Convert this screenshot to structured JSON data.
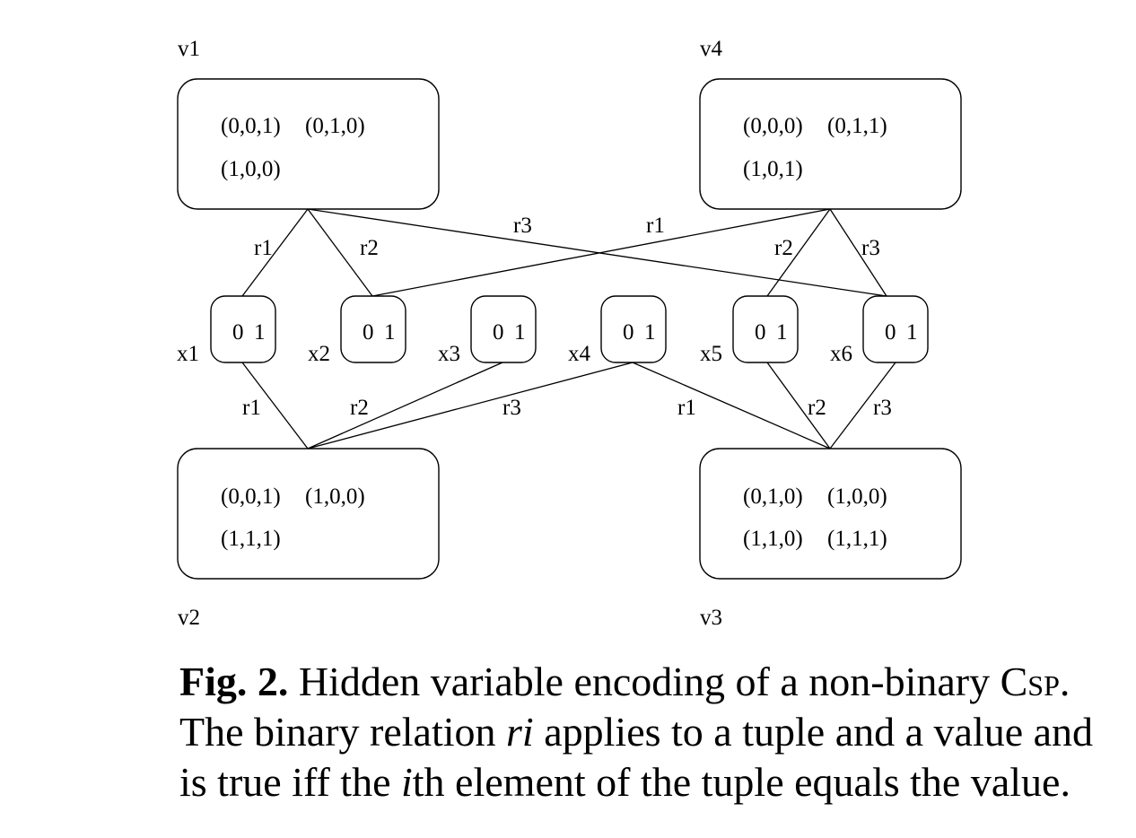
{
  "diagram": {
    "constraint_nodes": [
      {
        "id": "v1",
        "label": "v1",
        "tuples": [
          "(0,0,1)",
          "(0,1,0)",
          "(1,0,0)"
        ]
      },
      {
        "id": "v4",
        "label": "v4",
        "tuples": [
          "(0,0,0)",
          "(0,1,1)",
          "(1,0,1)"
        ]
      },
      {
        "id": "v2",
        "label": "v2",
        "tuples": [
          "(0,0,1)",
          "(1,0,0)",
          "(1,1,1)"
        ]
      },
      {
        "id": "v3",
        "label": "v3",
        "tuples": [
          "(0,1,0)",
          "(1,0,0)",
          "(1,1,0)",
          "(1,1,1)"
        ]
      }
    ],
    "variable_nodes": [
      {
        "id": "x1",
        "label": "x1",
        "domain": [
          "0",
          "1"
        ]
      },
      {
        "id": "x2",
        "label": "x2",
        "domain": [
          "0",
          "1"
        ]
      },
      {
        "id": "x3",
        "label": "x3",
        "domain": [
          "0",
          "1"
        ]
      },
      {
        "id": "x4",
        "label": "x4",
        "domain": [
          "0",
          "1"
        ]
      },
      {
        "id": "x5",
        "label": "x5",
        "domain": [
          "0",
          "1"
        ]
      },
      {
        "id": "x6",
        "label": "x6",
        "domain": [
          "0",
          "1"
        ]
      }
    ],
    "edges": [
      {
        "from": "v1",
        "to": "x1",
        "relation": "r1"
      },
      {
        "from": "v1",
        "to": "x2",
        "relation": "r2"
      },
      {
        "from": "v1",
        "to": "x6",
        "relation": "r3"
      },
      {
        "from": "v4",
        "to": "x2",
        "relation": "r1"
      },
      {
        "from": "v4",
        "to": "x5",
        "relation": "r2"
      },
      {
        "from": "v4",
        "to": "x6",
        "relation": "r3"
      },
      {
        "from": "v2",
        "to": "x1",
        "relation": "r1"
      },
      {
        "from": "v2",
        "to": "x3",
        "relation": "r2"
      },
      {
        "from": "v2",
        "to": "x4",
        "relation": "r3"
      },
      {
        "from": "v3",
        "to": "x4",
        "relation": "r1"
      },
      {
        "from": "v3",
        "to": "x5",
        "relation": "r2"
      },
      {
        "from": "v3",
        "to": "x6",
        "relation": "r3"
      }
    ]
  },
  "caption": {
    "fig_label": "Fig. 2.",
    "text_1": " Hidden variable encoding of a non-binary ",
    "csp": "Csp",
    "text_2": ". The binary relation ",
    "ri": "ri",
    "text_3": " applies to a tuple and a value and is true iff the ",
    "i": "i",
    "text_4": "th element of the tuple equals the value."
  }
}
